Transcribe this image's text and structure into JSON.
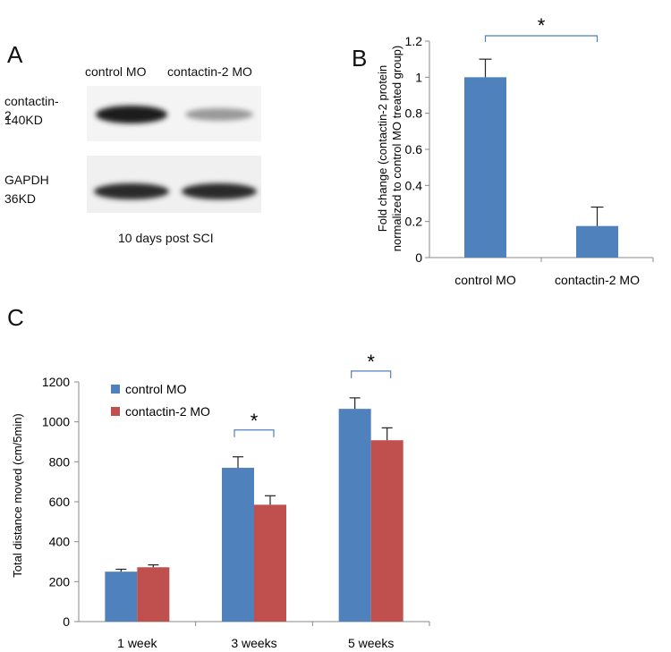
{
  "panel_labels": {
    "a": "A",
    "b": "B",
    "c": "C"
  },
  "western_blot": {
    "lane_labels": [
      "control MO",
      "contactin-2 MO"
    ],
    "bands": [
      {
        "name_line1": "contactin-2",
        "name_line2": "140KD"
      },
      {
        "name_line1": "GAPDH",
        "name_line2": "36KD"
      }
    ],
    "caption": "10 days post SCI"
  },
  "chart_data": [
    {
      "type": "bar",
      "title": "",
      "ylabel_line1": "Fold change (contactin-2 protein",
      "ylabel_line2": "normalized to control MO treated group)",
      "xlabel": "",
      "categories": [
        "control MO",
        "contactin-2 MO"
      ],
      "values": [
        1.0,
        0.175
      ],
      "errors": [
        0.1,
        0.105
      ],
      "ylim": [
        0,
        1.2
      ],
      "yticks": [
        "0",
        "0.2",
        "0.4",
        "0.6",
        "0.8",
        "1",
        "1.2"
      ],
      "ytick_values": [
        0,
        0.2,
        0.4,
        0.6,
        0.8,
        1.0,
        1.2
      ],
      "color": "#4f81bd",
      "significance": [
        {
          "between": [
            0,
            1
          ],
          "label": "*"
        }
      ],
      "grid": false
    },
    {
      "type": "bar",
      "title": "",
      "ylabel": "Total distance moved (cm/5min)",
      "xlabel": "",
      "categories": [
        "1 week",
        "3 weeks",
        "5 weeks"
      ],
      "series": [
        {
          "name": "control MO",
          "color": "#4f81bd",
          "values": [
            250,
            770,
            1065
          ],
          "errors": [
            12,
            55,
            55
          ]
        },
        {
          "name": "contactin-2 MO",
          "color": "#c0504d",
          "values": [
            272,
            585,
            908
          ],
          "errors": [
            12,
            45,
            62
          ]
        }
      ],
      "ylim": [
        0,
        1200
      ],
      "yticks": [
        "0",
        "200",
        "400",
        "600",
        "800",
        "1000",
        "1200"
      ],
      "ytick_values": [
        0,
        200,
        400,
        600,
        800,
        1000,
        1200
      ],
      "legend_position": "top-left",
      "significance": [
        {
          "category": 1,
          "label": "*"
        },
        {
          "category": 2,
          "label": "*"
        }
      ],
      "grid": false
    }
  ]
}
